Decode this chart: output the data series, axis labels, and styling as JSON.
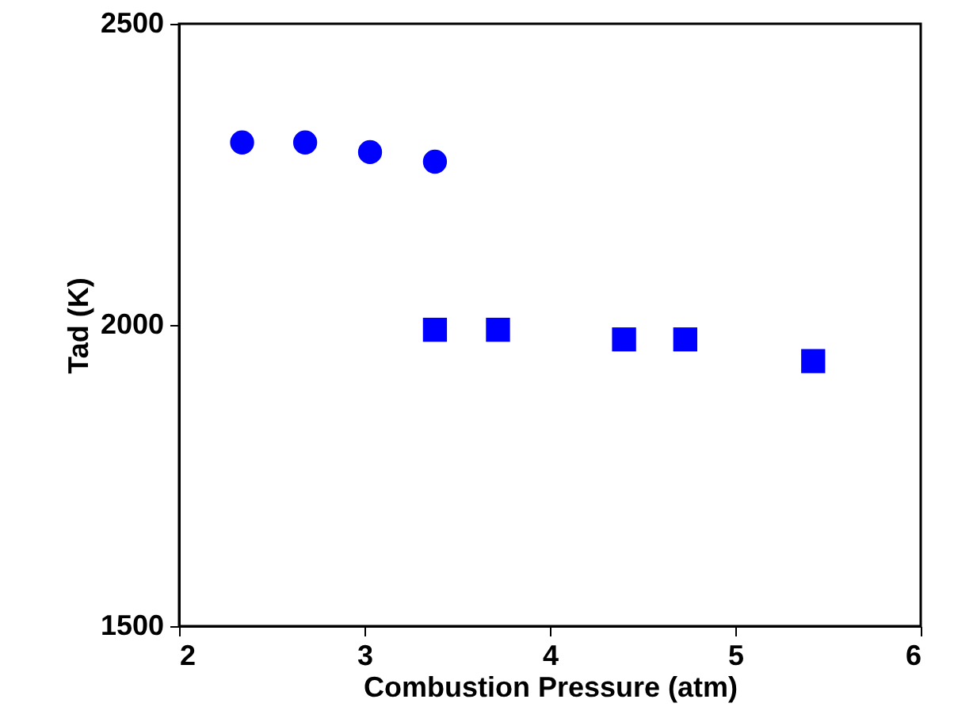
{
  "chart_data": {
    "type": "scatter",
    "xlabel": "Combustion Pressure (atm)",
    "ylabel": "Tad (K)",
    "xlim": [
      2,
      6
    ],
    "xticks": [
      2,
      3,
      4,
      5,
      6
    ],
    "ylim": [
      1500,
      2500
    ],
    "yticks": [
      1500,
      2000,
      2500
    ],
    "grid": false,
    "legend": false,
    "series": [
      {
        "color": "#0000ff",
        "marker": "circle",
        "x": [
          2.34,
          2.68,
          3.03,
          3.38
        ],
        "values": [
          2303,
          2303,
          2287,
          2271
        ]
      },
      {
        "color": "#0000ff",
        "marker": "square",
        "x": [
          3.38,
          3.72,
          4.4,
          4.73,
          5.42
        ],
        "values": [
          1992,
          1992,
          1976,
          1976,
          1940
        ]
      }
    ]
  }
}
